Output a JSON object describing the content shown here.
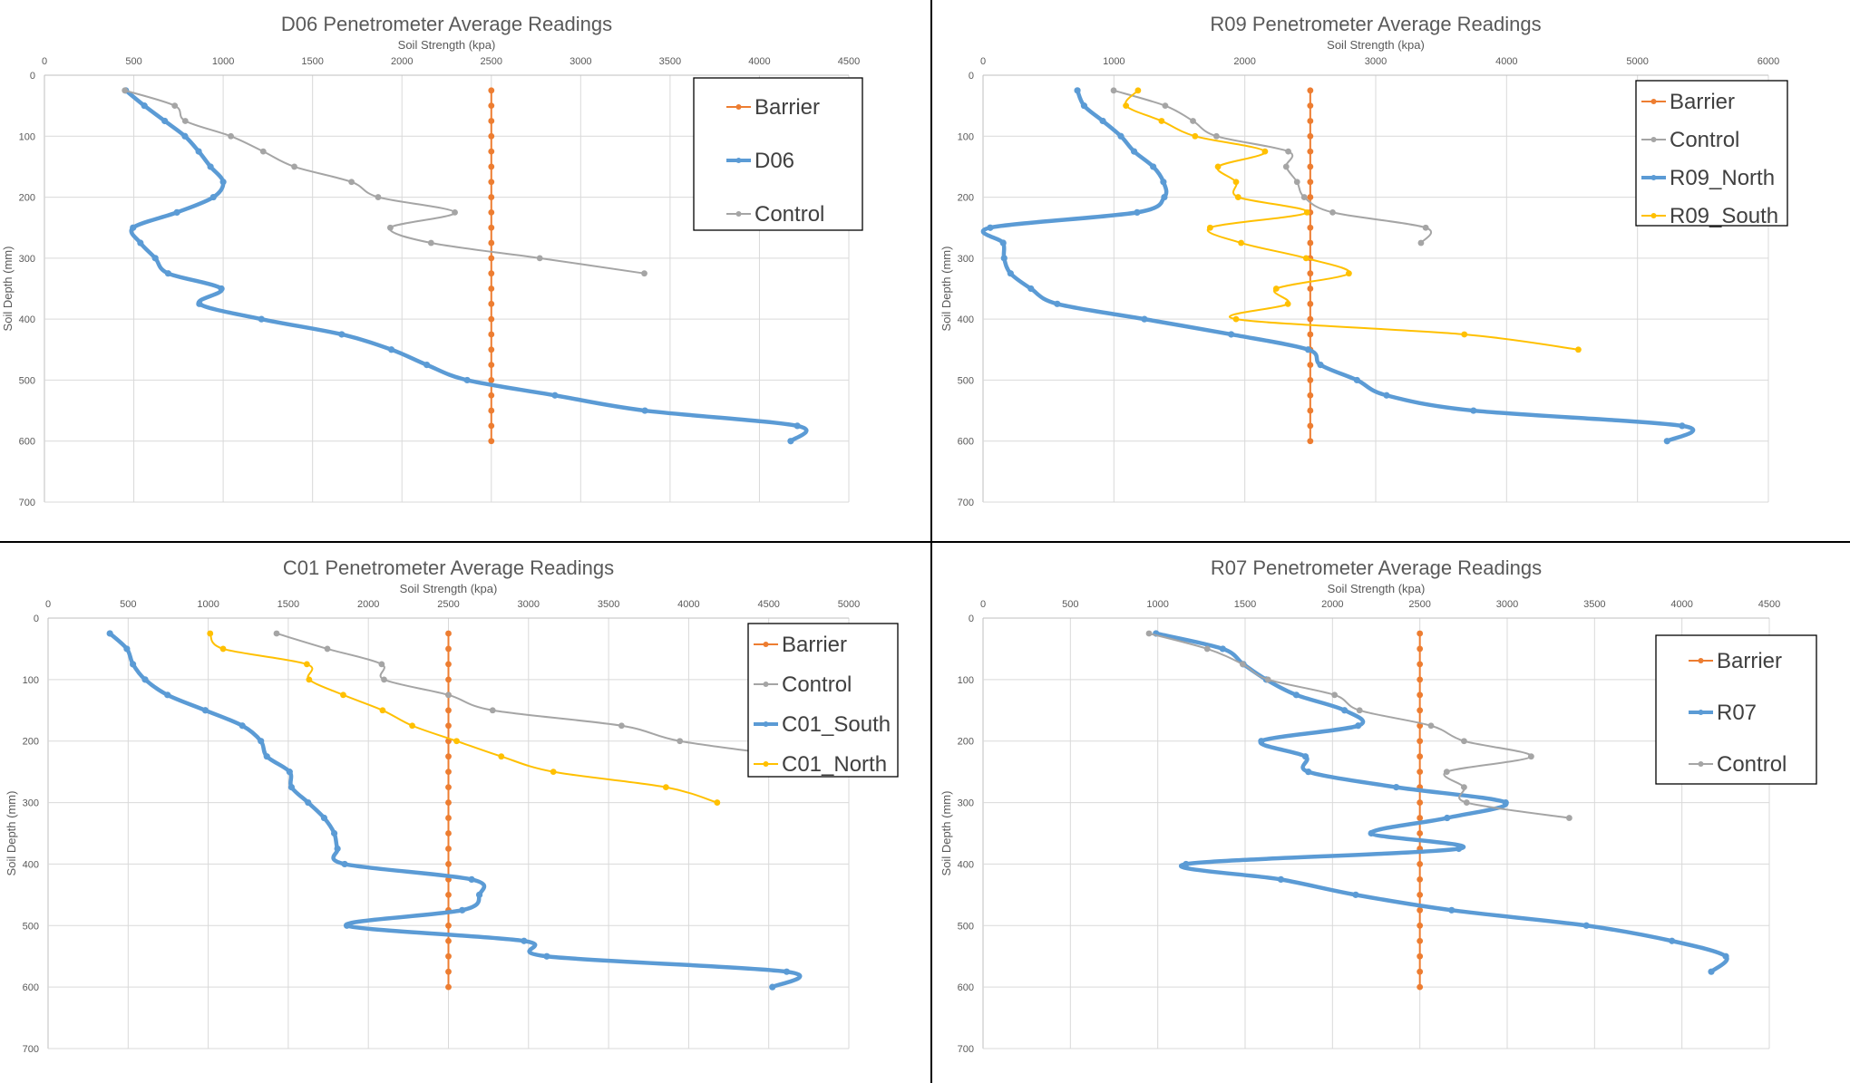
{
  "figure": {
    "panels": [
      "D06",
      "R09",
      "C01",
      "R07"
    ]
  },
  "chart_data": [
    {
      "id": "D06",
      "type": "line",
      "title": "D06 Penetrometer Average Readings",
      "xlabel": "Soil Strength (kpa)",
      "ylabel": "Soil Depth (mm)",
      "xlim": [
        0,
        4500
      ],
      "ylim": [
        0,
        700
      ],
      "y_inverted": true,
      "x_axis_position": "top",
      "xticks": [
        0,
        500,
        1000,
        1500,
        2000,
        2500,
        3000,
        3500,
        4000,
        4500
      ],
      "yticks": [
        0,
        100,
        200,
        300,
        400,
        500,
        600,
        700
      ],
      "grid": true,
      "legend_position": "top-right",
      "series": [
        {
          "name": "Barrier",
          "color": "#ED7D31",
          "width": "thin",
          "x": [
            2500,
            2500,
            2500,
            2500,
            2500,
            2500,
            2500,
            2500,
            2500,
            2500,
            2500,
            2500,
            2500,
            2500,
            2500,
            2500,
            2500,
            2500,
            2500,
            2500,
            2500,
            2500,
            2500,
            2500
          ],
          "y": [
            25,
            50,
            75,
            100,
            125,
            150,
            175,
            200,
            225,
            250,
            275,
            300,
            325,
            350,
            375,
            400,
            425,
            450,
            475,
            500,
            525,
            550,
            575,
            600
          ]
        },
        {
          "name": "D06",
          "color": "#5B9BD5",
          "width": "thick",
          "x": [
            455,
            559,
            673,
            786,
            863,
            929,
            1000,
            945,
            741,
            496,
            537,
            620,
            692,
            990,
            867,
            1214,
            1663,
            1941,
            2139,
            2365,
            2856,
            3359,
            4212,
            4175
          ],
          "y": [
            25,
            50,
            75,
            100,
            125,
            150,
            175,
            200,
            225,
            250,
            275,
            300,
            325,
            350,
            375,
            400,
            425,
            450,
            475,
            500,
            525,
            550,
            575,
            600
          ]
        },
        {
          "name": "Control",
          "color": "#A5A5A5",
          "width": "thin",
          "x": [
            450,
            729,
            788,
            1043,
            1224,
            1398,
            1718,
            1867,
            2296,
            1935,
            2163,
            2771,
            3356
          ],
          "y": [
            25,
            50,
            75,
            100,
            125,
            150,
            175,
            200,
            225,
            250,
            275,
            300,
            325
          ]
        }
      ]
    },
    {
      "id": "R09",
      "type": "line",
      "title": "R09 Penetrometer Average Readings",
      "xlabel": "Soil Strength (kpa)",
      "ylabel": "Soil Depth (mm)",
      "xlim": [
        0,
        6000
      ],
      "ylim": [
        0,
        700
      ],
      "y_inverted": true,
      "x_axis_position": "top",
      "xticks": [
        0,
        1000,
        2000,
        3000,
        4000,
        5000,
        6000
      ],
      "yticks": [
        0,
        100,
        200,
        300,
        400,
        500,
        600,
        700
      ],
      "grid": true,
      "legend_position": "top-right",
      "series": [
        {
          "name": "Barrier",
          "color": "#ED7D31",
          "width": "thin",
          "x": [
            2500,
            2500,
            2500,
            2500,
            2500,
            2500,
            2500,
            2500,
            2500,
            2500,
            2500,
            2500,
            2500,
            2500,
            2500,
            2500,
            2500,
            2500,
            2500,
            2500,
            2500,
            2500,
            2500,
            2500
          ],
          "y": [
            25,
            50,
            75,
            100,
            125,
            150,
            175,
            200,
            225,
            250,
            275,
            300,
            325,
            350,
            375,
            400,
            425,
            450,
            475,
            500,
            525,
            550,
            575,
            600
          ]
        },
        {
          "name": "Control",
          "color": "#A5A5A5",
          "width": "thin",
          "x": [
            998,
            1392,
            1604,
            1783,
            2332,
            2316,
            2399,
            2454,
            2671,
            3382,
            3346
          ],
          "y": [
            25,
            50,
            75,
            100,
            125,
            150,
            175,
            200,
            225,
            250,
            275
          ]
        },
        {
          "name": "R09_North",
          "color": "#5B9BD5",
          "width": "thick",
          "x": [
            721,
            772,
            915,
            1053,
            1154,
            1300,
            1378,
            1385,
            1177,
            55,
            154,
            161,
            210,
            366,
            567,
            1233,
            1896,
            2484,
            2578,
            2857,
            3083,
            3747,
            5341,
            5226
          ],
          "y": [
            25,
            50,
            75,
            100,
            125,
            150,
            175,
            200,
            225,
            250,
            275,
            300,
            325,
            350,
            375,
            400,
            425,
            450,
            475,
            500,
            525,
            550,
            575,
            600
          ]
        },
        {
          "name": "R09_South",
          "color": "#FFC000",
          "width": "thin",
          "x": [
            1184,
            1092,
            1364,
            1620,
            2154,
            1795,
            1933,
            1949,
            2475,
            1735,
            1972,
            2468,
            2795,
            2240,
            2329,
            1933,
            3677,
            4548
          ],
          "y": [
            25,
            50,
            75,
            100,
            125,
            150,
            175,
            200,
            225,
            250,
            275,
            300,
            325,
            350,
            375,
            400,
            425,
            450
          ]
        }
      ]
    },
    {
      "id": "C01",
      "type": "line",
      "title": "C01 Penetrometer Average Readings",
      "xlabel": "Soil Strength (kpa)",
      "ylabel": "Soil Depth (mm)",
      "xlim": [
        0,
        5000
      ],
      "ylim": [
        0,
        700
      ],
      "y_inverted": true,
      "x_axis_position": "top",
      "xticks": [
        0,
        500,
        1000,
        1500,
        2000,
        2500,
        3000,
        3500,
        4000,
        4500,
        5000
      ],
      "yticks": [
        0,
        100,
        200,
        300,
        400,
        500,
        600,
        700
      ],
      "grid": true,
      "legend_position": "top-right",
      "series": [
        {
          "name": "Barrier",
          "color": "#ED7D31",
          "width": "thin",
          "x": [
            2500,
            2500,
            2500,
            2500,
            2500,
            2500,
            2500,
            2500,
            2500,
            2500,
            2500,
            2500,
            2500,
            2500,
            2500,
            2500,
            2500,
            2500,
            2500,
            2500,
            2500,
            2500,
            2500,
            2500
          ],
          "y": [
            25,
            50,
            75,
            100,
            125,
            150,
            175,
            200,
            225,
            250,
            275,
            300,
            325,
            350,
            375,
            400,
            425,
            450,
            475,
            500,
            525,
            550,
            575,
            600
          ]
        },
        {
          "name": "Control",
          "color": "#A5A5A5",
          "width": "thin",
          "x": [
            1427,
            1744,
            2083,
            2098,
            2500,
            2776,
            3581,
            3945,
            4650
          ],
          "y": [
            25,
            50,
            75,
            100,
            125,
            150,
            175,
            200,
            225
          ]
        },
        {
          "name": "C01_South",
          "color": "#5B9BD5",
          "width": "thick",
          "x": [
            386,
            492,
            530,
            606,
            746,
            982,
            1213,
            1329,
            1366,
            1508,
            1520,
            1624,
            1724,
            1787,
            1807,
            1852,
            2645,
            2693,
            2586,
            1866,
            2972,
            3114,
            4612,
            4523
          ],
          "y": [
            25,
            50,
            75,
            100,
            125,
            150,
            175,
            200,
            225,
            250,
            275,
            300,
            325,
            350,
            375,
            400,
            425,
            450,
            475,
            500,
            525,
            550,
            575,
            600
          ]
        },
        {
          "name": "C01_North",
          "color": "#FFC000",
          "width": "thin",
          "x": [
            1012,
            1093,
            1616,
            1630,
            1843,
            2089,
            2274,
            2551,
            2830,
            3155,
            3858,
            4178
          ],
          "y": [
            25,
            50,
            75,
            100,
            125,
            150,
            175,
            200,
            225,
            250,
            275,
            300
          ]
        }
      ]
    },
    {
      "id": "R07",
      "type": "line",
      "title": "R07  Penetrometer Average Readings",
      "xlabel": "Soil Strength (kpa)",
      "ylabel": "Soil Depth (mm)",
      "xlim": [
        0,
        4500
      ],
      "ylim": [
        0,
        700
      ],
      "y_inverted": true,
      "x_axis_position": "top",
      "xticks": [
        0,
        500,
        1000,
        1500,
        2000,
        2500,
        3000,
        3500,
        4000,
        4500
      ],
      "yticks": [
        0,
        100,
        200,
        300,
        400,
        500,
        600,
        700
      ],
      "grid": true,
      "legend_position": "top-right",
      "series": [
        {
          "name": "Barrier",
          "color": "#ED7D31",
          "width": "thin",
          "x": [
            2500,
            2500,
            2500,
            2500,
            2500,
            2500,
            2500,
            2500,
            2500,
            2500,
            2500,
            2500,
            2500,
            2500,
            2500,
            2500,
            2500,
            2500,
            2500,
            2500,
            2500,
            2500,
            2500,
            2500
          ],
          "y": [
            25,
            50,
            75,
            100,
            125,
            150,
            175,
            200,
            225,
            250,
            275,
            300,
            325,
            350,
            375,
            400,
            425,
            450,
            475,
            500,
            525,
            550,
            575,
            600
          ]
        },
        {
          "name": "R07",
          "color": "#5B9BD5",
          "width": "thick",
          "x": [
            990,
            1372,
            1490,
            1621,
            1793,
            2069,
            2147,
            1593,
            1845,
            1862,
            2365,
            2991,
            2656,
            2222,
            2723,
            1162,
            1705,
            2133,
            2682,
            3453,
            3943,
            4251,
            4168
          ],
          "y": [
            25,
            50,
            75,
            100,
            125,
            150,
            175,
            200,
            225,
            250,
            275,
            300,
            325,
            350,
            375,
            400,
            425,
            450,
            475,
            500,
            525,
            550,
            575
          ]
        },
        {
          "name": "Control",
          "color": "#A5A5A5",
          "width": "thin",
          "x": [
            950,
            1283,
            1486,
            1631,
            2012,
            2155,
            2564,
            2753,
            3137,
            2654,
            2753,
            2768,
            3355
          ],
          "y": [
            25,
            50,
            75,
            100,
            125,
            150,
            175,
            200,
            225,
            250,
            275,
            300,
            325
          ]
        }
      ]
    }
  ]
}
